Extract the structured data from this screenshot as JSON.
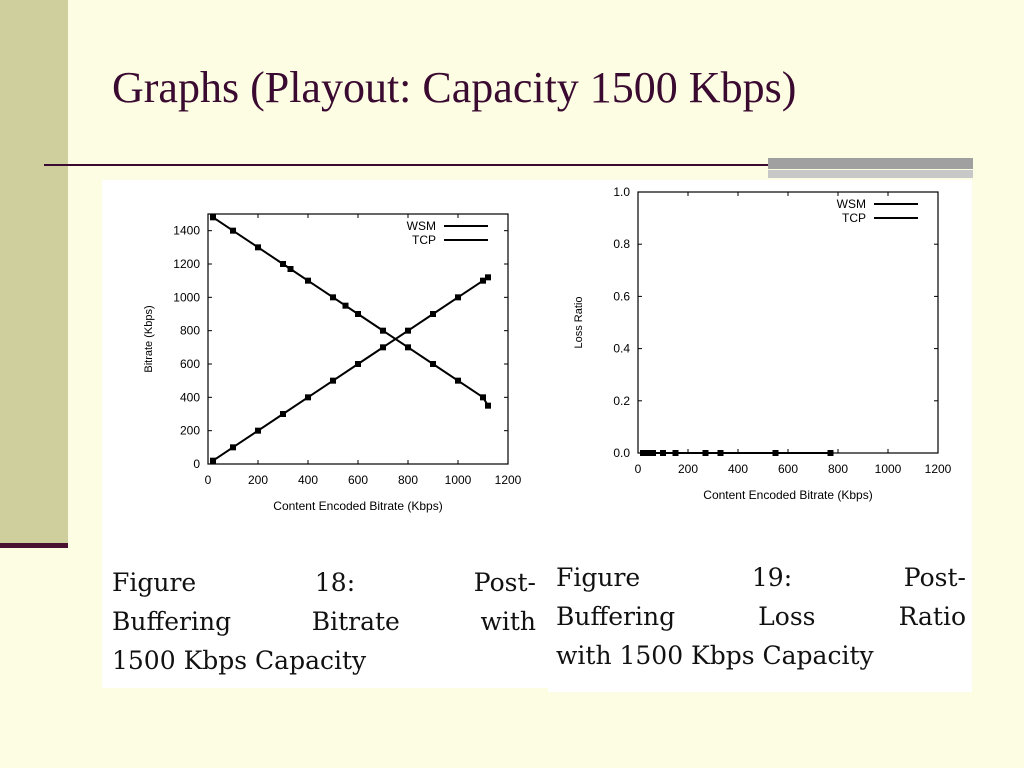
{
  "slide": {
    "title": "Graphs (Playout: Capacity 1500 Kbps)"
  },
  "colors": {
    "background": "#fdfde4",
    "sidebar": "#cfcf9e",
    "accent": "#3a0a30"
  },
  "figures": [
    {
      "caption_lines": [
        "Figure 18: Post-",
        "Buffering Bitrate with",
        "1500 Kbps Capacity"
      ]
    },
    {
      "caption_lines": [
        "Figure 19: Post-",
        "Buffering Loss Ratio",
        "with 1500 Kbps Capacity"
      ]
    }
  ],
  "chart_data": [
    {
      "type": "line",
      "xlabel": "Content Encoded Bitrate (Kbps)",
      "ylabel": "Bitrate (Kbps)",
      "xlim": [
        0,
        1200
      ],
      "ylim": [
        0,
        1500
      ],
      "xticks": [
        0,
        200,
        400,
        600,
        800,
        1000,
        1200
      ],
      "yticks": [
        0,
        200,
        400,
        600,
        800,
        1000,
        1200,
        1400
      ],
      "legend_position": "top-right",
      "series": [
        {
          "name": "WSM",
          "x": [
            20,
            100,
            200,
            300,
            400,
            500,
            600,
            700,
            800,
            900,
            1000,
            1100,
            1120
          ],
          "y": [
            20,
            100,
            200,
            300,
            400,
            500,
            600,
            700,
            800,
            900,
            1000,
            1100,
            1120
          ]
        },
        {
          "name": "TCP",
          "x": [
            20,
            100,
            200,
            300,
            330,
            400,
            500,
            550,
            600,
            700,
            800,
            900,
            1000,
            1100,
            1120
          ],
          "y": [
            1480,
            1400,
            1300,
            1200,
            1170,
            1100,
            1000,
            950,
            900,
            800,
            700,
            600,
            500,
            400,
            350
          ]
        }
      ]
    },
    {
      "type": "line",
      "xlabel": "Content Encoded Bitrate (Kbps)",
      "ylabel": "Loss Ratio",
      "xlim": [
        0,
        1200
      ],
      "ylim": [
        0,
        1
      ],
      "xticks": [
        0,
        200,
        400,
        600,
        800,
        1000,
        1200
      ],
      "yticks": [
        0,
        0.2,
        0.4,
        0.6,
        0.8,
        1
      ],
      "legend_position": "top-right",
      "series": [
        {
          "name": "WSM",
          "x": [
            20,
            40,
            60,
            100,
            150,
            270,
            330,
            550,
            770
          ],
          "y": [
            0,
            0,
            0,
            0,
            0,
            0,
            0,
            0,
            0
          ]
        },
        {
          "name": "TCP",
          "x": [
            20,
            40,
            60,
            100,
            150,
            270,
            330,
            550,
            770
          ],
          "y": [
            0,
            0,
            0,
            0,
            0,
            0,
            0,
            0,
            0
          ]
        }
      ]
    }
  ]
}
